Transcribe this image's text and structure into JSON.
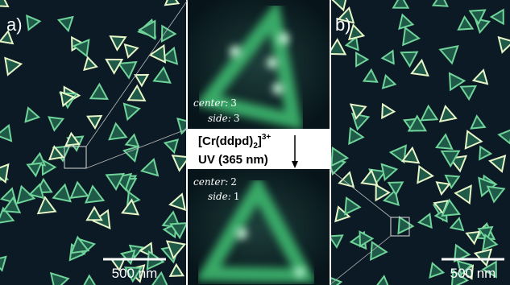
{
  "figure": {
    "panel_a": {
      "label": "a)",
      "scale_bar": "500 nm"
    },
    "panel_b": {
      "label": "b)",
      "scale_bar": "500 nm"
    },
    "zoom_top": {
      "center": {
        "label": "center:",
        "value": 3
      },
      "side": {
        "label": "side:",
        "value": 3
      }
    },
    "zoom_bottom": {
      "center": {
        "label": "center:",
        "value": 2
      },
      "side": {
        "label": "side:",
        "value": 1
      }
    },
    "reaction": {
      "formula": {
        "prefix": "[Cr(ddpd)",
        "sub": "2",
        "close": "]",
        "sup": "3+"
      },
      "condition": "UV (365 nm)"
    }
  }
}
